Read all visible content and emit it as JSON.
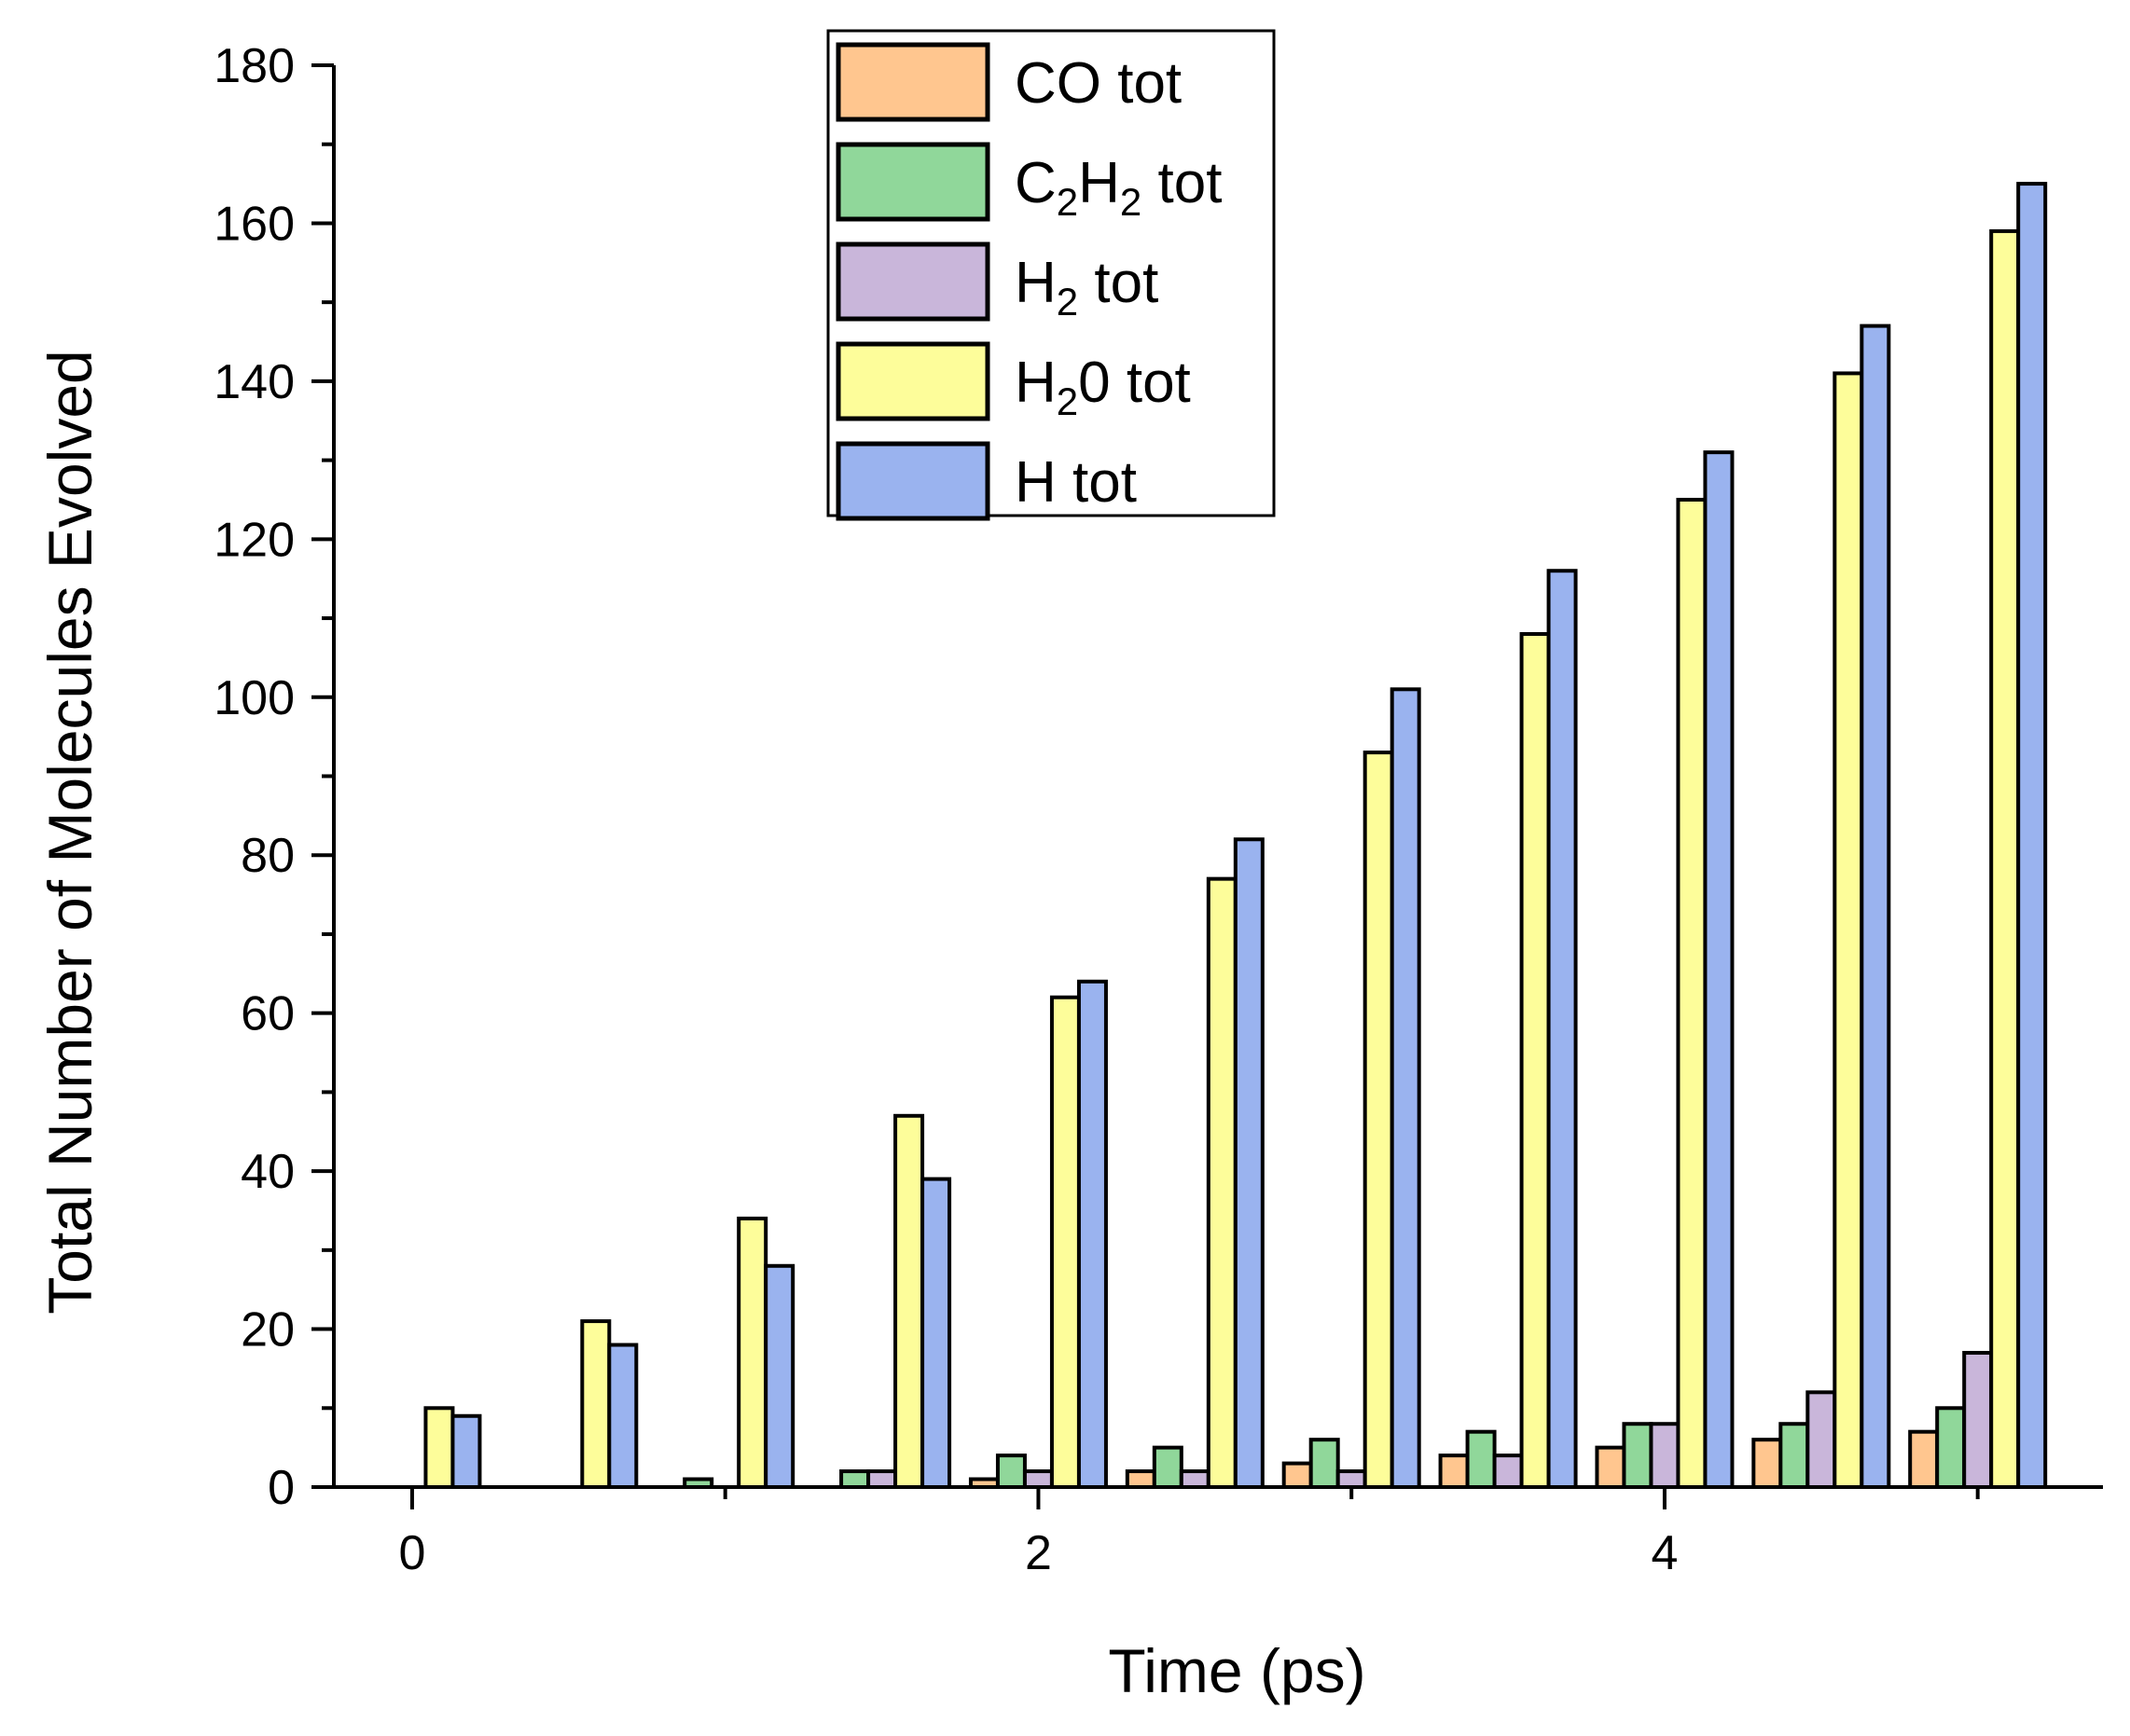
{
  "chart_data": {
    "type": "bar",
    "xlabel": "Time (ps)",
    "ylabel": "Total Number of Molecules Evolved",
    "ylim": [
      0,
      180
    ],
    "xlim": [
      -0.25,
      5.4
    ],
    "x_ticks": [
      "0",
      "2",
      "4"
    ],
    "x_tick_values": [
      0,
      2,
      4
    ],
    "x_minor_tick_values": [
      1,
      3,
      5
    ],
    "y_ticks": [
      "0",
      "20",
      "40",
      "60",
      "80",
      "100",
      "120",
      "140",
      "160",
      "180"
    ],
    "y_tick_values": [
      0,
      20,
      40,
      60,
      80,
      100,
      120,
      140,
      160,
      180
    ],
    "x": [
      0,
      0.5,
      1.0,
      1.5,
      2.0,
      2.5,
      3.0,
      3.5,
      4.0,
      4.5,
      5.0
    ],
    "series": [
      {
        "name": "CO tot",
        "label_main": "CO tot",
        "color": "#ffc68f",
        "values": [
          0,
          0,
          0,
          0,
          1,
          2,
          3,
          4,
          5,
          6,
          7
        ]
      },
      {
        "name": "C2H2 tot",
        "label_main": "C",
        "label_sub": "2",
        "label_mid": "H",
        "label_sub2": "2",
        "label_tail": " tot",
        "color": "#90d79a",
        "values": [
          0,
          0,
          1,
          2,
          4,
          5,
          6,
          7,
          8,
          8,
          10
        ]
      },
      {
        "name": "H2 tot",
        "label_main": "H",
        "label_sub": "2",
        "label_tail": " tot",
        "color": "#c9b6da",
        "values": [
          0,
          0,
          0,
          2,
          2,
          2,
          2,
          4,
          8,
          12,
          17
        ]
      },
      {
        "name": "H20 tot",
        "label_main": "H",
        "label_sub": "2",
        "label_tail": "0 tot",
        "color": "#fdfd9a",
        "values": [
          10,
          21,
          34,
          47,
          62,
          77,
          93,
          108,
          125,
          141,
          159
        ]
      },
      {
        "name": "H tot",
        "label_main": "H tot",
        "color": "#9ab3ef",
        "values": [
          9,
          18,
          28,
          39,
          64,
          82,
          101,
          116,
          131,
          147,
          165
        ]
      }
    ],
    "legend_position": "top-center",
    "grid": false
  }
}
